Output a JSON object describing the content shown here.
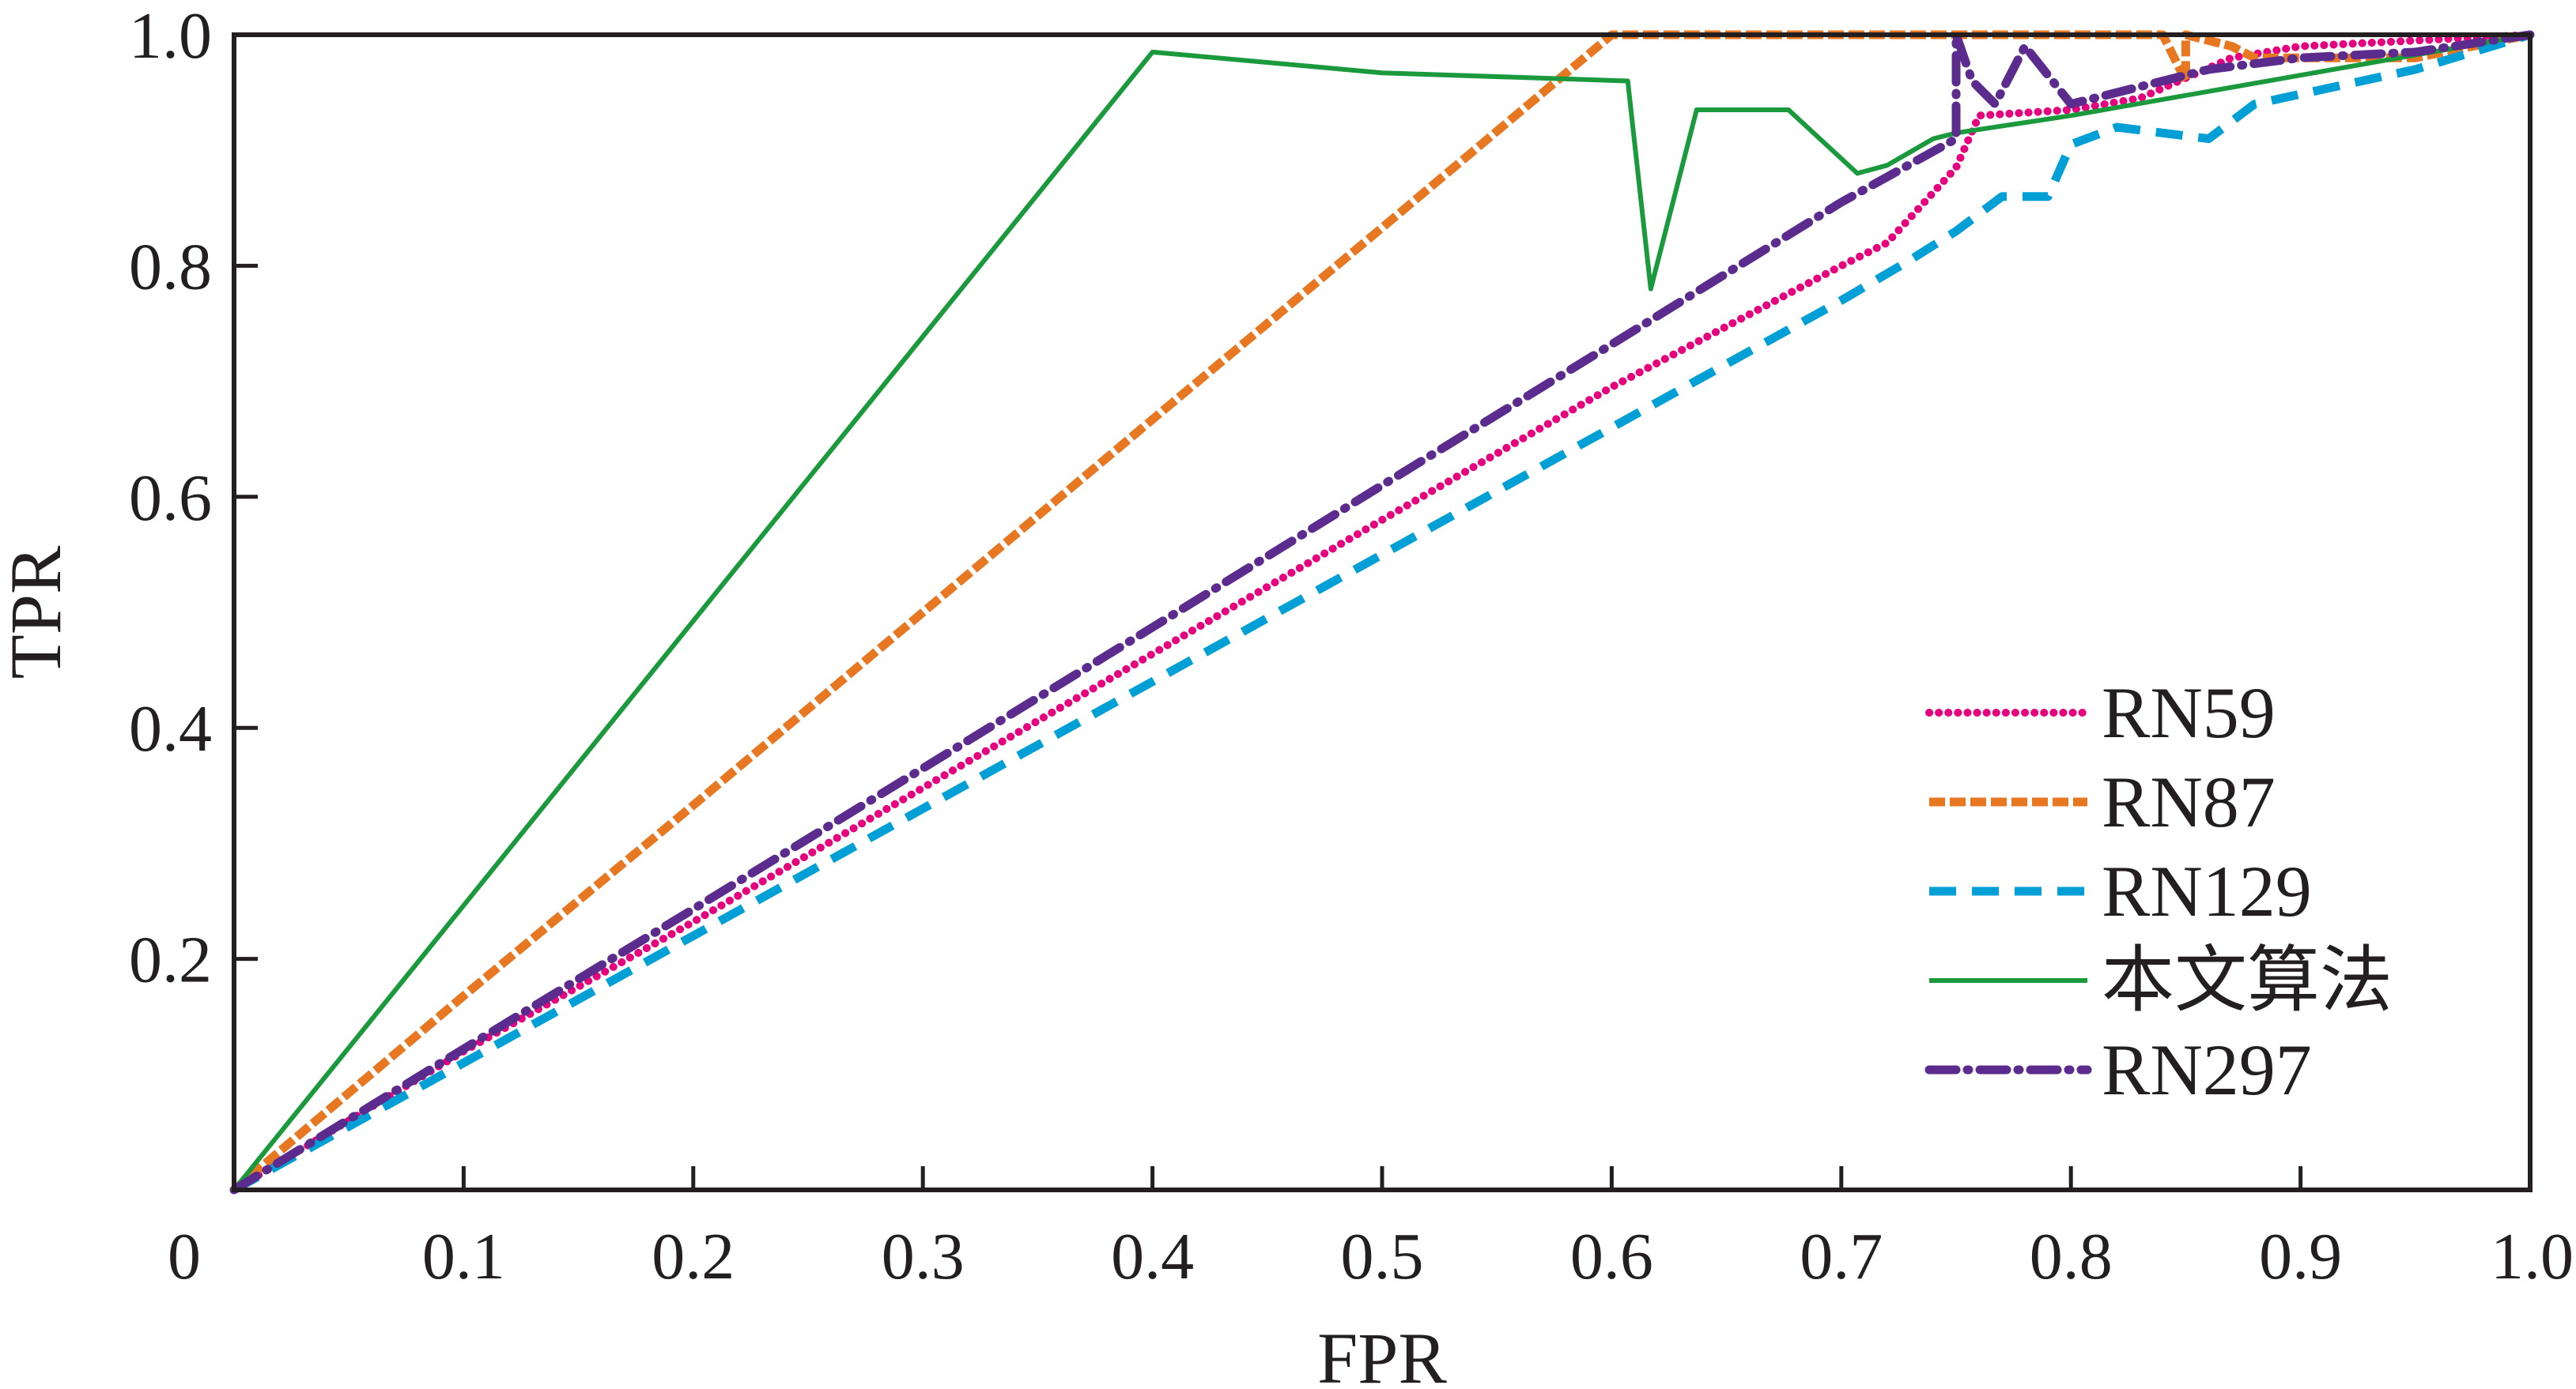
{
  "chart_data": {
    "type": "line",
    "title": "",
    "xlabel": "FPR",
    "ylabel": "TPR",
    "xlim": [
      0,
      1.0
    ],
    "ylim": [
      0,
      1.0
    ],
    "grid": false,
    "legend_position": "bottom-right",
    "x_ticks": [
      "0",
      "0.1",
      "0.2",
      "0.3",
      "0.4",
      "0.5",
      "0.6",
      "0.7",
      "0.8",
      "0.9",
      "1.0"
    ],
    "y_ticks": [
      "0.2",
      "0.4",
      "0.6",
      "0.8",
      "1.0"
    ],
    "series": [
      {
        "name": "RN59",
        "color": "#e6007e",
        "style": "dotted",
        "points": [
          [
            0,
            0
          ],
          [
            0.1,
            0.12
          ],
          [
            0.2,
            0.232
          ],
          [
            0.3,
            0.348
          ],
          [
            0.4,
            0.464
          ],
          [
            0.5,
            0.58
          ],
          [
            0.6,
            0.695
          ],
          [
            0.7,
            0.8
          ],
          [
            0.72,
            0.82
          ],
          [
            0.75,
            0.885
          ],
          [
            0.76,
            0.93
          ],
          [
            0.8,
            0.935
          ],
          [
            0.83,
            0.945
          ],
          [
            0.87,
            0.98
          ],
          [
            0.9,
            0.99
          ],
          [
            1.0,
            1.0
          ]
        ]
      },
      {
        "name": "RN87",
        "color": "#e87722",
        "style": "dashed",
        "points": [
          [
            0,
            0
          ],
          [
            0.1,
            0.168
          ],
          [
            0.2,
            0.333
          ],
          [
            0.3,
            0.5
          ],
          [
            0.4,
            0.667
          ],
          [
            0.5,
            0.833
          ],
          [
            0.6,
            1.0
          ],
          [
            0.7,
            1.0
          ],
          [
            0.84,
            1.0
          ],
          [
            0.85,
            0.96
          ],
          [
            0.85,
            1.0
          ],
          [
            0.87,
            0.99
          ],
          [
            0.88,
            0.98
          ],
          [
            0.95,
            0.98
          ],
          [
            1.0,
            1.0
          ]
        ]
      },
      {
        "name": "RN129",
        "color": "#00a0d6",
        "style": "long-dashed",
        "points": [
          [
            0,
            0
          ],
          [
            0.1,
            0.11
          ],
          [
            0.2,
            0.22
          ],
          [
            0.3,
            0.33
          ],
          [
            0.4,
            0.44
          ],
          [
            0.5,
            0.55
          ],
          [
            0.6,
            0.66
          ],
          [
            0.7,
            0.77
          ],
          [
            0.73,
            0.805
          ],
          [
            0.75,
            0.83
          ],
          [
            0.77,
            0.86
          ],
          [
            0.79,
            0.86
          ],
          [
            0.8,
            0.905
          ],
          [
            0.82,
            0.92
          ],
          [
            0.86,
            0.91
          ],
          [
            0.88,
            0.94
          ],
          [
            0.95,
            0.97
          ],
          [
            1.0,
            1.0
          ]
        ]
      },
      {
        "name": "本文算法",
        "color": "#1b9a3d",
        "style": "solid",
        "points": [
          [
            0,
            0
          ],
          [
            0.4,
            0.985
          ],
          [
            0.5,
            0.967
          ],
          [
            0.607,
            0.96
          ],
          [
            0.617,
            0.78
          ],
          [
            0.637,
            0.935
          ],
          [
            0.677,
            0.935
          ],
          [
            0.707,
            0.88
          ],
          [
            0.72,
            0.887
          ],
          [
            0.74,
            0.91
          ],
          [
            0.75,
            0.915
          ],
          [
            0.8,
            0.93
          ],
          [
            0.9,
            0.965
          ],
          [
            1.0,
            1.0
          ]
        ]
      },
      {
        "name": "RN297",
        "color": "#5b2c8e",
        "style": "dash-dot",
        "points": [
          [
            0,
            0
          ],
          [
            0.1,
            0.122
          ],
          [
            0.2,
            0.243
          ],
          [
            0.3,
            0.365
          ],
          [
            0.4,
            0.487
          ],
          [
            0.5,
            0.61
          ],
          [
            0.6,
            0.732
          ],
          [
            0.7,
            0.855
          ],
          [
            0.75,
            0.91
          ],
          [
            0.75,
            1.0
          ],
          [
            0.757,
            0.96
          ],
          [
            0.767,
            0.94
          ],
          [
            0.78,
            0.99
          ],
          [
            0.8,
            0.94
          ],
          [
            0.83,
            0.955
          ],
          [
            0.86,
            0.97
          ],
          [
            0.9,
            0.98
          ],
          [
            0.95,
            0.985
          ],
          [
            1.0,
            1.0
          ]
        ]
      }
    ]
  }
}
